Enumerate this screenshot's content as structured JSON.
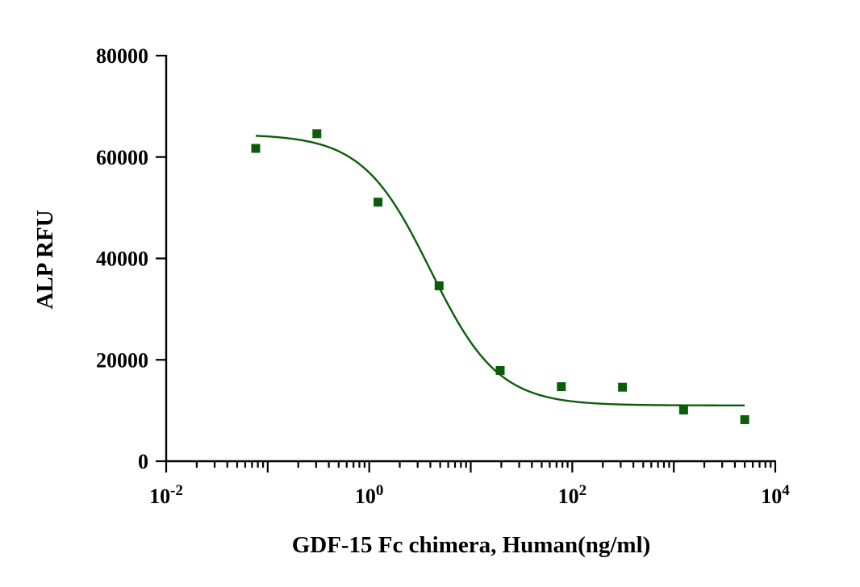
{
  "chart_data": {
    "type": "scatter",
    "xscale": "log10",
    "xlim": [
      0.01,
      10000
    ],
    "ylim": [
      0,
      80000
    ],
    "xlabel": "GDF-15 Fc chimera, Human(ng/ml)",
    "ylabel": "ALP RFU",
    "y_ticks": [
      0,
      20000,
      40000,
      60000,
      80000
    ],
    "x_ticks": [
      {
        "base": "10",
        "exp": "-2"
      },
      {
        "base": "10",
        "exp": "0"
      },
      {
        "base": "10",
        "exp": "2"
      },
      {
        "base": "10",
        "exp": "4"
      }
    ],
    "series": [
      {
        "name": "GDF-15 Fc chimera",
        "color": "#0b5d0b",
        "marker": "square",
        "x": [
          0.0762,
          0.305,
          1.22,
          4.88,
          19.5,
          78.1,
          312.5,
          1250,
          5000
        ],
        "y": [
          61700,
          64600,
          51100,
          34600,
          17900,
          14700,
          14600,
          10100,
          8200
        ]
      }
    ],
    "fit": {
      "model": "4PL",
      "top": 64500,
      "bottom": 11000,
      "ec50": 4.0,
      "hill": 1.3,
      "x_range": [
        0.0762,
        5000
      ],
      "color": "#0b5d0b"
    }
  }
}
